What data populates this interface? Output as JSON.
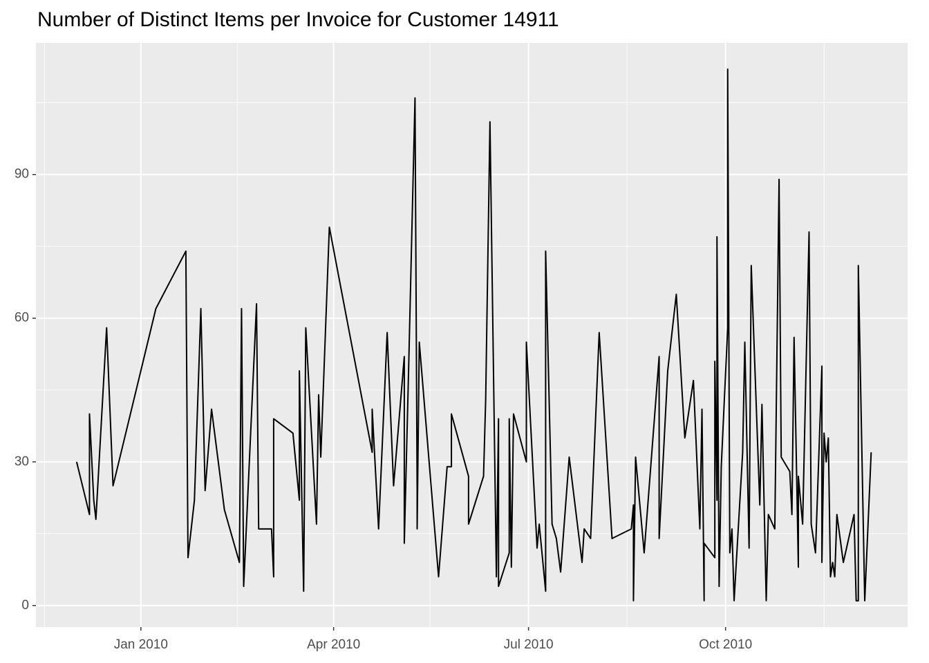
{
  "chart_data": {
    "type": "line",
    "title": "Number of Distinct Items per Invoice for Customer 14911",
    "color": "#000000",
    "x": [
      14580,
      14586,
      14586,
      14588,
      14589,
      14594,
      14597,
      14617,
      14631,
      14632,
      14635,
      14638,
      14640,
      14643,
      14649,
      14656,
      14657,
      14658,
      14664,
      14665,
      14671,
      14672,
      14672,
      14681,
      14684,
      14684,
      14686,
      14687,
      14692,
      14693,
      14694,
      14698,
      14718,
      14718,
      14721,
      14725,
      14728,
      14733,
      14733,
      14735,
      14738,
      14739,
      14739,
      14740,
      14749,
      14753,
      14755,
      14755,
      14763,
      14763,
      14770,
      14771,
      14773,
      14776,
      14777,
      14777,
      14782,
      14782,
      14783,
      14784,
      14790,
      14790,
      14795,
      14796,
      14799,
      14799,
      14802,
      14804,
      14806,
      14810,
      14816,
      14817,
      14820,
      14824,
      14830,
      14839,
      14840,
      14840,
      14841,
      14845,
      14852,
      14852,
      14856,
      14860,
      14864,
      14868,
      14871,
      14872,
      14873,
      14873,
      14878,
      14878,
      14879,
      14879,
      14880,
      14881,
      14884,
      14884,
      14885,
      14886,
      14887,
      14891,
      14892,
      14894,
      14895,
      14899,
      14900,
      14902,
      14903,
      14906,
      14908,
      14909,
      14913,
      14914,
      14915,
      14917,
      14917,
      14919,
      14922,
      14923,
      14925,
      14928,
      14928,
      14929,
      14930,
      14931,
      14932,
      14933,
      14934,
      14935,
      14938,
      14943,
      14944,
      14945,
      14945,
      14948,
      14951
    ],
    "values": [
      30,
      19,
      40,
      22,
      18,
      58,
      25,
      62,
      74,
      10,
      22,
      62,
      24,
      41,
      20,
      9,
      62,
      4,
      63,
      16,
      16,
      6,
      39,
      36,
      22,
      49,
      3,
      58,
      17,
      44,
      31,
      79,
      32,
      41,
      16,
      57,
      25,
      52,
      13,
      49,
      106,
      24,
      16,
      55,
      6,
      29,
      29,
      40,
      27,
      17,
      27,
      43,
      101,
      6,
      39,
      4,
      11,
      39,
      8,
      40,
      30,
      55,
      12,
      17,
      3,
      74,
      17,
      14,
      7,
      31,
      9,
      16,
      14,
      57,
      14,
      16,
      21,
      1,
      31,
      11,
      52,
      14,
      49,
      65,
      35,
      47,
      16,
      41,
      1,
      13,
      10,
      51,
      22,
      77,
      4,
      29,
      58,
      112,
      11,
      16,
      1,
      32,
      55,
      12,
      71,
      21,
      42,
      1,
      19,
      16,
      89,
      31,
      28,
      19,
      56,
      8,
      27,
      17,
      78,
      17,
      11,
      50,
      9,
      36,
      30,
      35,
      6,
      9,
      6,
      19,
      9,
      19,
      1,
      1,
      71,
      1,
      32
    ],
    "xlim": [
      14561,
      14968
    ],
    "xticks": [
      {
        "value": 14610,
        "label": "Jan 2010"
      },
      {
        "value": 14700,
        "label": "Apr 2010"
      },
      {
        "value": 14791,
        "label": "Jul 2010"
      },
      {
        "value": 14883,
        "label": "Oct 2010"
      }
    ],
    "xminor": [
      14565,
      14655,
      14745,
      14837,
      14929
    ],
    "ylim": [
      -4.5,
      117.5
    ],
    "yticks": [
      0,
      30,
      60,
      90
    ],
    "yminor": [
      15,
      45,
      75,
      105
    ],
    "grid": true
  }
}
